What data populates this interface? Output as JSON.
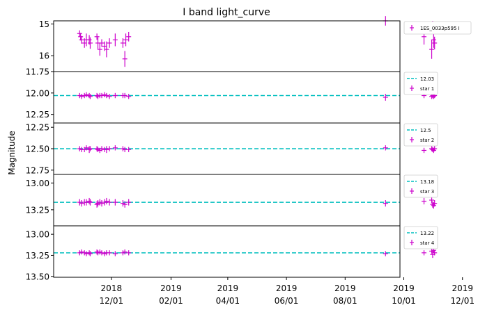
{
  "chart_data": {
    "type": "scatter",
    "title": "I band light_curve",
    "ylabel": "Magnitude",
    "xlim_days": [
      -60,
      300
    ],
    "x_ticks": [
      {
        "day": 0,
        "line1": "2018",
        "line2": "12/01"
      },
      {
        "day": 62,
        "line1": "2019",
        "line2": "02/01"
      },
      {
        "day": 121,
        "line1": "2019",
        "line2": "04/01"
      },
      {
        "day": 182,
        "line1": "2019",
        "line2": "06/01"
      },
      {
        "day": 243,
        "line1": "2019",
        "line2": "08/01"
      },
      {
        "day": 304,
        "line1": "2019",
        "line2": "10/01"
      },
      {
        "day": 365,
        "line1": "2019",
        "line2": "12/01"
      }
    ],
    "panels": [
      {
        "name": "1ES_0033p595 I",
        "ylim": [
          16.5,
          14.9
        ],
        "yticks": [
          15,
          16
        ],
        "yticklabels": [
          "15",
          "16"
        ],
        "ref_line": null,
        "ref_label": "",
        "series_label": "1ES_0033p595 I",
        "points": [
          [
            -33,
            15.3,
            0.1
          ],
          [
            -32,
            15.4,
            0.12
          ],
          [
            -31,
            15.5,
            0.12
          ],
          [
            -28,
            15.6,
            0.15
          ],
          [
            -26,
            15.5,
            0.2
          ],
          [
            -23,
            15.5,
            0.15
          ],
          [
            -22,
            15.6,
            0.18
          ],
          [
            -15,
            15.4,
            0.1
          ],
          [
            -14,
            15.6,
            0.18
          ],
          [
            -12,
            15.8,
            0.2
          ],
          [
            -10,
            15.6,
            0.12
          ],
          [
            -7,
            15.7,
            0.15
          ],
          [
            -5,
            15.8,
            0.25
          ],
          [
            -2,
            15.6,
            0.15
          ],
          [
            4,
            15.5,
            0.2
          ],
          [
            12,
            15.6,
            0.15
          ],
          [
            14,
            16.1,
            0.25
          ],
          [
            15,
            15.5,
            0.2
          ],
          [
            18,
            15.4,
            0.15
          ],
          [
            285,
            14.9,
            0.15
          ],
          [
            325,
            15.4,
            0.25
          ],
          [
            333,
            15.8,
            0.3
          ],
          [
            334,
            15.1,
            0.2
          ],
          [
            335,
            15.5,
            0.25
          ],
          [
            336,
            15.6,
            0.2
          ]
        ]
      },
      {
        "name": "star 1",
        "ylim": [
          12.35,
          11.75
        ],
        "yticks": [
          11.75,
          12.0,
          12.25
        ],
        "yticklabels": [
          "11.75",
          "12.00",
          "12.25"
        ],
        "ref_line": 12.03,
        "ref_label": "12.03",
        "series_label": "star 1",
        "points": [
          [
            -33,
            12.03,
            0.03
          ],
          [
            -31,
            12.04,
            0.03
          ],
          [
            -28,
            12.03,
            0.03
          ],
          [
            -26,
            12.02,
            0.03
          ],
          [
            -23,
            12.03,
            0.03
          ],
          [
            -22,
            12.04,
            0.03
          ],
          [
            -15,
            12.03,
            0.03
          ],
          [
            -14,
            12.04,
            0.03
          ],
          [
            -12,
            12.03,
            0.03
          ],
          [
            -10,
            12.03,
            0.03
          ],
          [
            -7,
            12.02,
            0.03
          ],
          [
            -5,
            12.03,
            0.03
          ],
          [
            -2,
            12.04,
            0.03
          ],
          [
            4,
            12.03,
            0.03
          ],
          [
            12,
            12.03,
            0.03
          ],
          [
            14,
            12.03,
            0.03
          ],
          [
            18,
            12.04,
            0.03
          ],
          [
            285,
            12.05,
            0.04
          ],
          [
            325,
            12.03,
            0.03
          ],
          [
            333,
            12.04,
            0.03
          ],
          [
            334,
            12.03,
            0.03
          ],
          [
            335,
            12.04,
            0.03
          ],
          [
            336,
            12.03,
            0.03
          ]
        ]
      },
      {
        "name": "star 2",
        "ylim": [
          12.8,
          12.2
        ],
        "yticks": [
          12.25,
          12.5,
          12.75
        ],
        "yticklabels": [
          "12.25",
          "12.50",
          "12.75"
        ],
        "ref_line": 12.5,
        "ref_label": "12.5",
        "series_label": "star 2",
        "points": [
          [
            -33,
            12.5,
            0.03
          ],
          [
            -31,
            12.51,
            0.03
          ],
          [
            -28,
            12.51,
            0.03
          ],
          [
            -26,
            12.49,
            0.03
          ],
          [
            -23,
            12.51,
            0.04
          ],
          [
            -22,
            12.5,
            0.03
          ],
          [
            -15,
            12.5,
            0.03
          ],
          [
            -14,
            12.51,
            0.03
          ],
          [
            -12,
            12.52,
            0.03
          ],
          [
            -10,
            12.5,
            0.03
          ],
          [
            -7,
            12.51,
            0.03
          ],
          [
            -5,
            12.51,
            0.04
          ],
          [
            -2,
            12.5,
            0.03
          ],
          [
            4,
            12.49,
            0.03
          ],
          [
            12,
            12.5,
            0.03
          ],
          [
            14,
            12.51,
            0.03
          ],
          [
            18,
            12.51,
            0.03
          ],
          [
            285,
            12.49,
            0.03
          ],
          [
            325,
            12.52,
            0.03
          ],
          [
            333,
            12.5,
            0.03
          ],
          [
            334,
            12.51,
            0.03
          ],
          [
            335,
            12.52,
            0.03
          ],
          [
            336,
            12.5,
            0.03
          ]
        ]
      },
      {
        "name": "star 3",
        "ylim": [
          13.4,
          12.92
        ],
        "yticks": [
          13.0,
          13.25
        ],
        "yticklabels": [
          "13.00",
          "13.25"
        ],
        "ref_line": 13.18,
        "ref_label": "13.18",
        "series_label": "star 3",
        "points": [
          [
            -33,
            13.18,
            0.03
          ],
          [
            -31,
            13.19,
            0.03
          ],
          [
            -28,
            13.18,
            0.03
          ],
          [
            -26,
            13.18,
            0.03
          ],
          [
            -23,
            13.17,
            0.03
          ],
          [
            -22,
            13.18,
            0.03
          ],
          [
            -15,
            13.2,
            0.03
          ],
          [
            -14,
            13.19,
            0.03
          ],
          [
            -12,
            13.18,
            0.03
          ],
          [
            -10,
            13.19,
            0.03
          ],
          [
            -7,
            13.18,
            0.03
          ],
          [
            -5,
            13.17,
            0.03
          ],
          [
            -2,
            13.18,
            0.03
          ],
          [
            4,
            13.18,
            0.03
          ],
          [
            12,
            13.19,
            0.03
          ],
          [
            14,
            13.2,
            0.03
          ],
          [
            18,
            13.18,
            0.03
          ],
          [
            285,
            13.19,
            0.03
          ],
          [
            325,
            13.17,
            0.03
          ],
          [
            333,
            13.16,
            0.03
          ],
          [
            334,
            13.2,
            0.03
          ],
          [
            335,
            13.21,
            0.03
          ],
          [
            336,
            13.19,
            0.03
          ]
        ]
      },
      {
        "name": "star 4",
        "ylim": [
          13.51,
          12.9
        ],
        "yticks": [
          13.0,
          13.25,
          13.5
        ],
        "yticklabels": [
          "13.00",
          "13.25",
          "13.50"
        ],
        "ref_line": 13.22,
        "ref_label": "13.22",
        "series_label": "star 4",
        "points": [
          [
            -33,
            13.22,
            0.03
          ],
          [
            -31,
            13.21,
            0.03
          ],
          [
            -28,
            13.22,
            0.03
          ],
          [
            -26,
            13.23,
            0.03
          ],
          [
            -23,
            13.22,
            0.03
          ],
          [
            -22,
            13.23,
            0.03
          ],
          [
            -15,
            13.21,
            0.03
          ],
          [
            -14,
            13.22,
            0.03
          ],
          [
            -12,
            13.21,
            0.03
          ],
          [
            -10,
            13.22,
            0.03
          ],
          [
            -7,
            13.23,
            0.03
          ],
          [
            -5,
            13.22,
            0.03
          ],
          [
            -2,
            13.22,
            0.03
          ],
          [
            4,
            13.23,
            0.03
          ],
          [
            12,
            13.22,
            0.03
          ],
          [
            14,
            13.21,
            0.03
          ],
          [
            18,
            13.22,
            0.03
          ],
          [
            285,
            13.23,
            0.03
          ],
          [
            325,
            13.22,
            0.03
          ],
          [
            333,
            13.2,
            0.03
          ],
          [
            334,
            13.24,
            0.04
          ],
          [
            335,
            13.19,
            0.03
          ],
          [
            336,
            13.22,
            0.03
          ]
        ]
      }
    ],
    "colors": {
      "points": "#cc00cc",
      "ref_line": "#00bfbf",
      "axes": "#000000"
    }
  }
}
